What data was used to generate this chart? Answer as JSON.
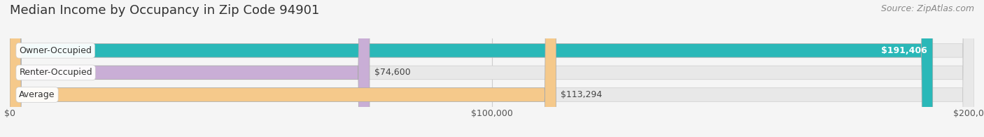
{
  "title": "Median Income by Occupancy in Zip Code 94901",
  "source": "Source: ZipAtlas.com",
  "categories": [
    "Owner-Occupied",
    "Renter-Occupied",
    "Average"
  ],
  "values": [
    191406,
    74600,
    113294
  ],
  "labels": [
    "$191,406",
    "$74,600",
    "$113,294"
  ],
  "bar_colors": [
    "#2ab8b8",
    "#c9aed6",
    "#f5c98b"
  ],
  "background_color": "#f5f5f5",
  "bar_bg_color": "#e8e8e8",
  "xlim": [
    0,
    200000
  ],
  "xticks": [
    0,
    100000,
    200000
  ],
  "xtick_labels": [
    "$0",
    "$100,000",
    "$200,000"
  ],
  "title_fontsize": 13,
  "source_fontsize": 9,
  "label_fontsize": 9,
  "category_fontsize": 9,
  "bar_height": 0.62,
  "label_inside": [
    true,
    false,
    false
  ]
}
